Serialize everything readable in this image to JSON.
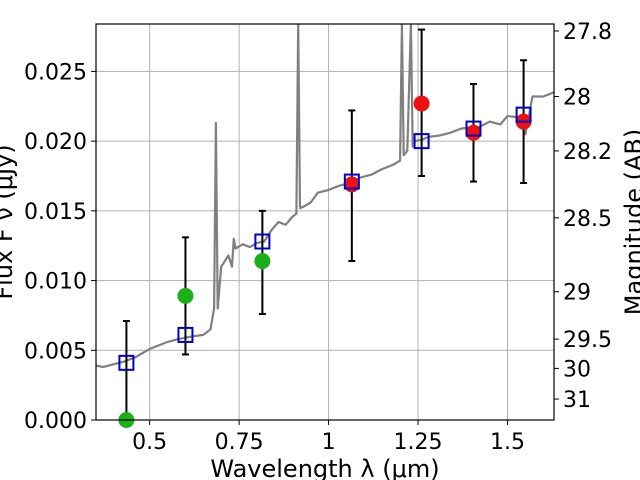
{
  "chart_data": {
    "type": "scatter",
    "title": "",
    "xlabel": "Wavelength $\\lambda$ ($\\mu$m)",
    "ylabel": "Flux $F_{\\nu}$ ($\\mu$Jy)",
    "ylabel_right": "Magnitude (AB)",
    "xlim": [
      0.35,
      1.63
    ],
    "ylim": [
      0.0,
      0.0284
    ],
    "grid": true,
    "x_ticks": [
      0.5,
      0.75,
      1.0,
      1.25,
      1.5
    ],
    "x_tick_labels": [
      "0.5",
      "0.75",
      "1",
      "1.25",
      "1.5"
    ],
    "y_ticks": [
      0.0,
      0.005,
      0.01,
      0.015,
      0.02,
      0.025
    ],
    "y_tick_labels": [
      "0.000",
      "0.005",
      "0.010",
      "0.015",
      "0.020",
      "0.025"
    ],
    "right_ticks": [
      {
        "label": "27.8",
        "flux": 0.0279
      },
      {
        "label": "28",
        "flux": 0.0232
      },
      {
        "label": "28.2",
        "flux": 0.0193
      },
      {
        "label": "28.5",
        "flux": 0.0145
      },
      {
        "label": "29",
        "flux": 0.0092
      },
      {
        "label": "29.5",
        "flux": 0.0058
      },
      {
        "label": "30",
        "flux": 0.0037
      },
      {
        "label": "31",
        "flux": 0.0015
      }
    ],
    "series": [
      {
        "marker": "line",
        "color": "#808080",
        "x": [
          0.35,
          0.37,
          0.4,
          0.43,
          0.46,
          0.48,
          0.5,
          0.52,
          0.55,
          0.58,
          0.6,
          0.62,
          0.65,
          0.67,
          0.68,
          0.685,
          0.69,
          0.7,
          0.72,
          0.73,
          0.735,
          0.74,
          0.76,
          0.78,
          0.8,
          0.82,
          0.84,
          0.86,
          0.88,
          0.9,
          0.91,
          0.915,
          0.92,
          0.93,
          0.95,
          0.97,
          1.0,
          1.03,
          1.06,
          1.09,
          1.12,
          1.15,
          1.18,
          1.2,
          1.205,
          1.21,
          1.22,
          1.23,
          1.235,
          1.24,
          1.26,
          1.28,
          1.31,
          1.34,
          1.37,
          1.4,
          1.42,
          1.45,
          1.48,
          1.5,
          1.53,
          1.55,
          1.57,
          1.6,
          1.63
        ],
        "y": [
          0.0039,
          0.0038,
          0.004,
          0.0042,
          0.0045,
          0.0048,
          0.0051,
          0.0053,
          0.0056,
          0.0058,
          0.0059,
          0.006,
          0.0061,
          0.0065,
          0.008,
          0.0213,
          0.008,
          0.011,
          0.0118,
          0.011,
          0.013,
          0.0123,
          0.0126,
          0.0124,
          0.0127,
          0.0128,
          0.0136,
          0.0142,
          0.014,
          0.0146,
          0.0148,
          0.0284,
          0.0152,
          0.0153,
          0.0156,
          0.0163,
          0.0165,
          0.0168,
          0.017,
          0.0174,
          0.0176,
          0.018,
          0.0183,
          0.0186,
          0.0284,
          0.019,
          0.0193,
          0.0284,
          0.0196,
          0.02,
          0.0201,
          0.0203,
          0.0204,
          0.0206,
          0.0209,
          0.021,
          0.021,
          0.0214,
          0.0212,
          0.0218,
          0.0217,
          0.0205,
          0.0232,
          0.0232,
          0.0235
        ]
      },
      {
        "marker": "open-square",
        "color": "#0000cc",
        "x": [
          0.435,
          0.6,
          0.815,
          1.065,
          1.26,
          1.405,
          1.545
        ],
        "y": [
          0.0041,
          0.0061,
          0.0128,
          0.0171,
          0.02,
          0.0209,
          0.0219
        ]
      },
      {
        "marker": "filled-circle",
        "color": "#1ab01a",
        "x": [
          0.435,
          0.6,
          0.815
        ],
        "y": [
          0.0,
          0.0089,
          0.0114
        ]
      },
      {
        "marker": "filled-circle",
        "color": "#ee1111",
        "x": [
          1.065,
          1.26,
          1.405,
          1.545
        ],
        "y": [
          0.0169,
          0.0227,
          0.0206,
          0.0214
        ]
      },
      {
        "marker": "errorbar",
        "color": "#000000",
        "x": [
          0.435,
          0.6,
          0.815,
          1.065,
          1.26,
          1.405,
          1.545
        ],
        "y_low": [
          0.0,
          0.0047,
          0.0076,
          0.0114,
          0.0175,
          0.0171,
          0.017
        ],
        "y_high": [
          0.0071,
          0.0131,
          0.015,
          0.0222,
          0.028,
          0.0241,
          0.0258
        ]
      }
    ]
  }
}
